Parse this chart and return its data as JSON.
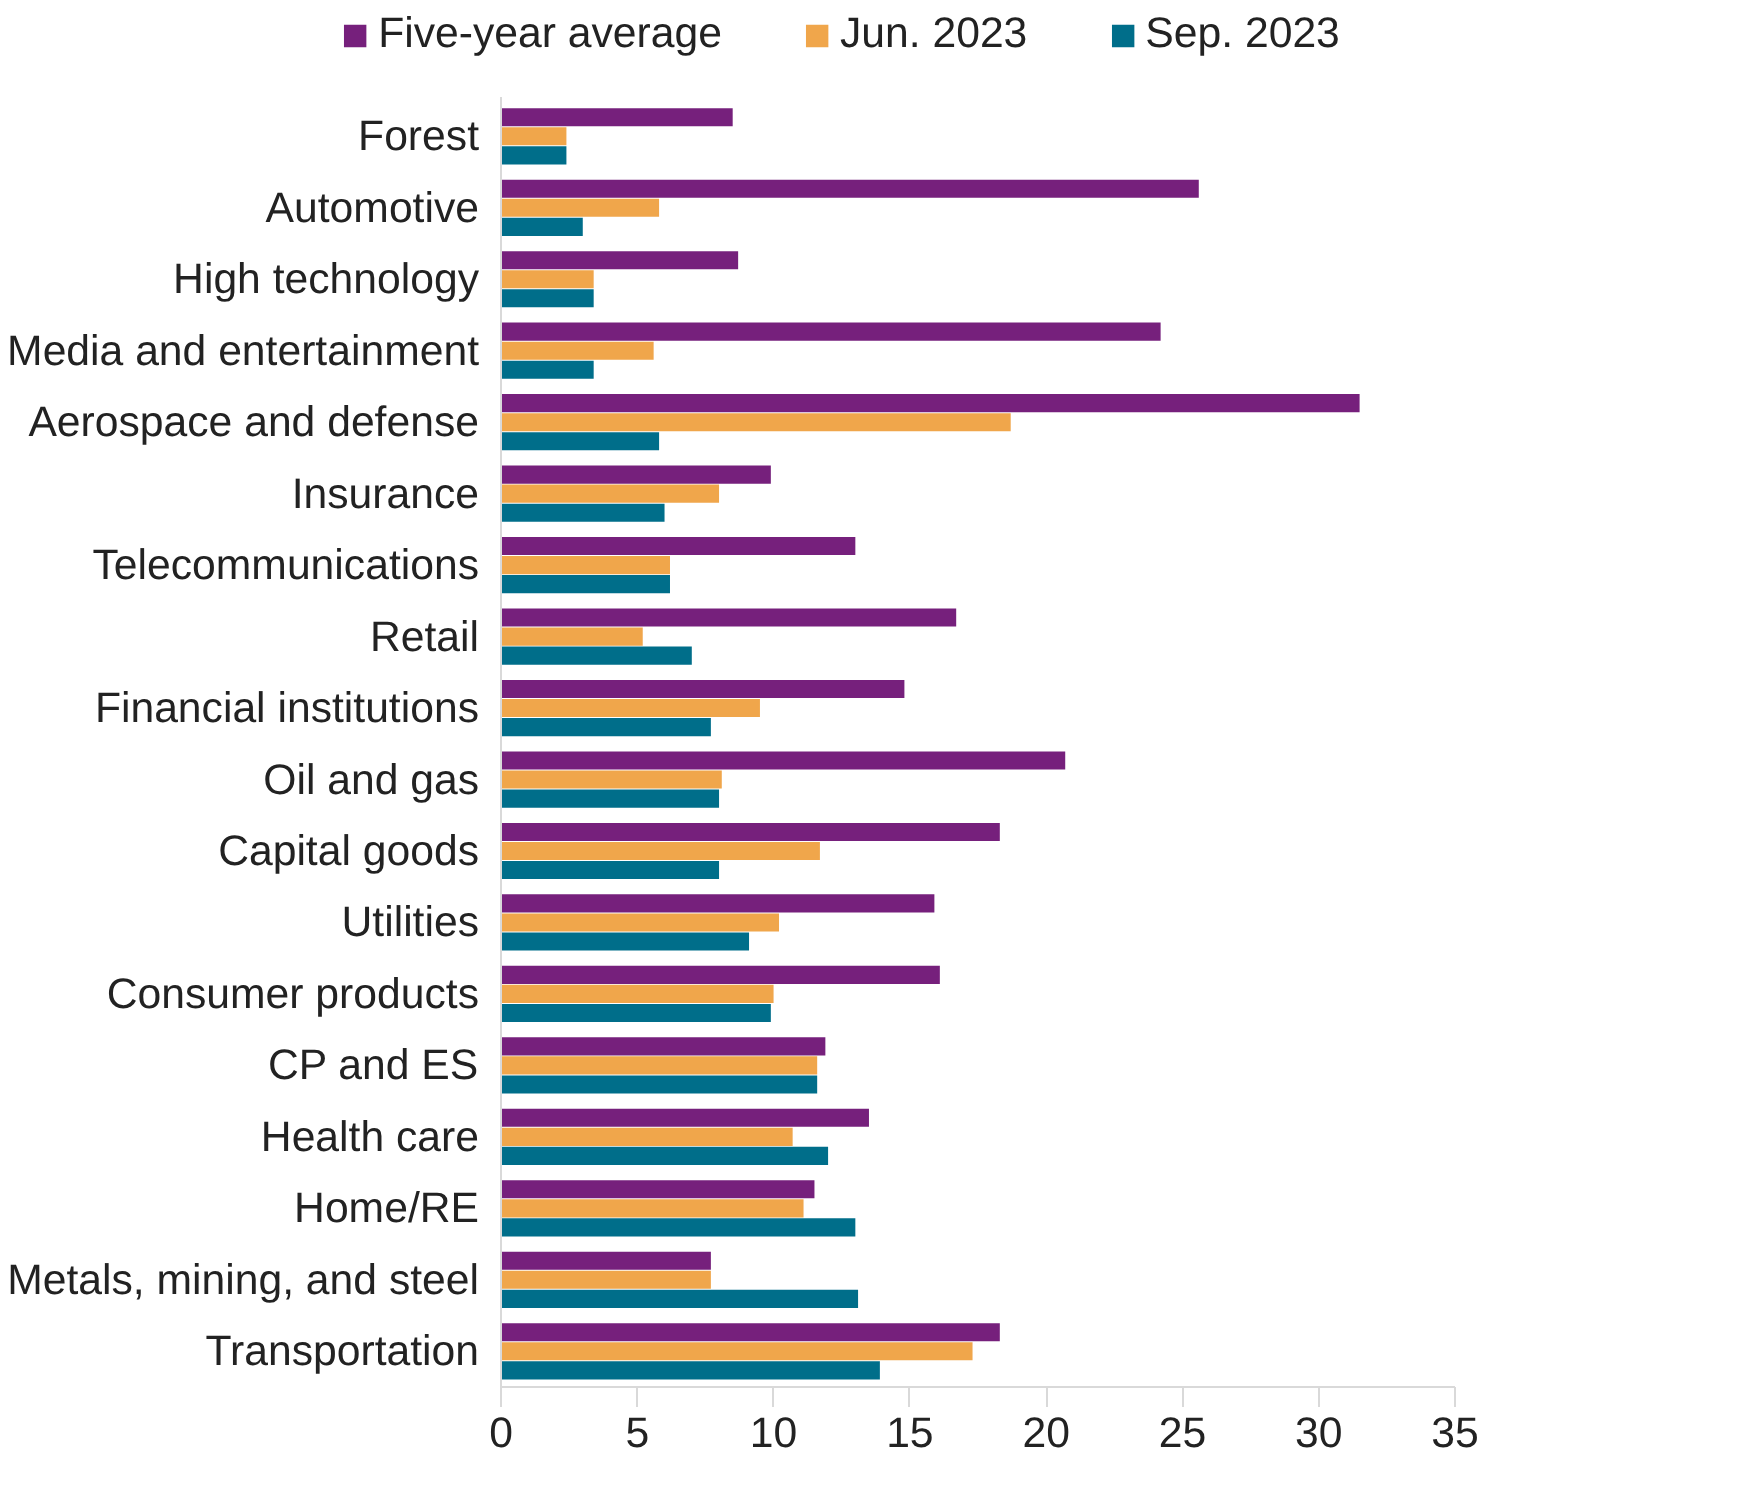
{
  "chart_data": {
    "type": "bar",
    "orientation": "horizontal",
    "categories": [
      "Forest",
      "Automotive",
      "High technology",
      "Media and entertainment",
      "Aerospace and defense",
      "Insurance",
      "Telecommunications",
      "Retail",
      "Financial institutions",
      "Oil and gas",
      "Capital goods",
      "Utilities",
      "Consumer products",
      "CP and ES",
      "Health care",
      "Home/RE",
      "Metals, mining, and steel",
      "Transportation"
    ],
    "series": [
      {
        "name": "Five-year average",
        "color": "#76207c",
        "values": [
          8.5,
          25.6,
          8.7,
          24.2,
          31.5,
          9.9,
          13.0,
          16.7,
          14.8,
          20.7,
          18.3,
          15.9,
          16.1,
          11.9,
          13.5,
          11.5,
          7.7,
          18.3
        ]
      },
      {
        "name": "Jun. 2023",
        "color": "#f0a64b",
        "values": [
          2.4,
          5.8,
          3.4,
          5.6,
          18.7,
          8.0,
          6.2,
          5.2,
          9.5,
          8.1,
          11.7,
          10.2,
          10.0,
          11.6,
          10.7,
          11.1,
          7.7,
          17.3
        ]
      },
      {
        "name": "Sep. 2023",
        "color": "#006e8a",
        "values": [
          2.4,
          3.0,
          3.4,
          3.4,
          5.8,
          6.0,
          6.2,
          7.0,
          7.7,
          8.0,
          8.0,
          9.1,
          9.9,
          11.6,
          12.0,
          13.0,
          13.1,
          13.9
        ]
      }
    ],
    "xlim": [
      0,
      35
    ],
    "xticks": [
      0,
      5,
      10,
      15,
      20,
      25,
      30,
      35
    ],
    "grid": false,
    "legend": "top"
  }
}
